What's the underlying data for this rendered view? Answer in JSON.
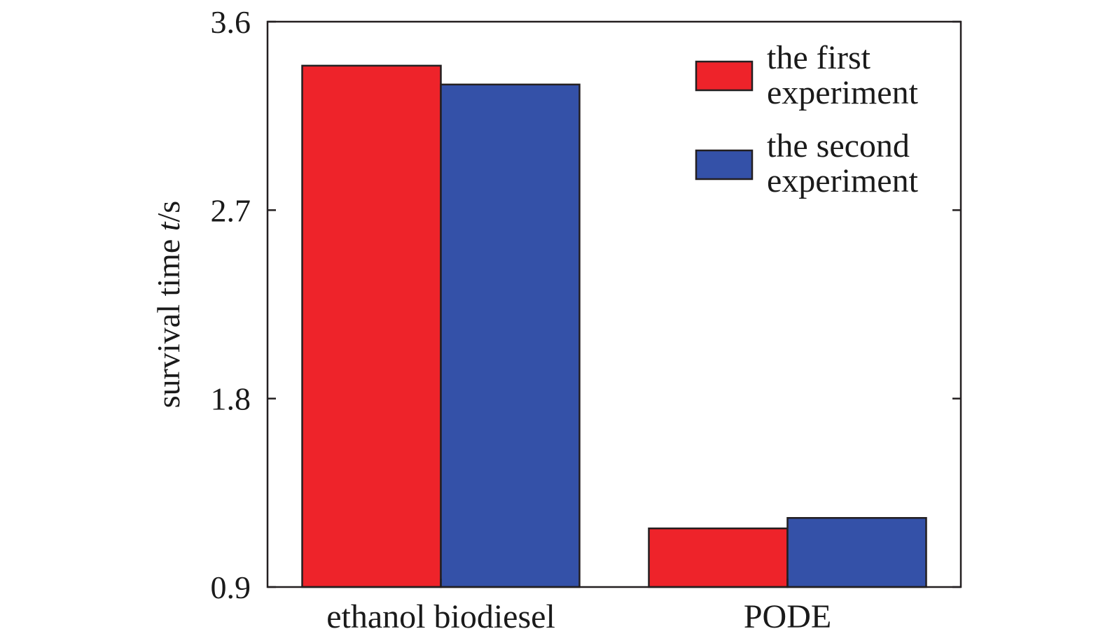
{
  "chart_data": {
    "type": "bar",
    "categories": [
      "ethanol biodiesel",
      "PODE"
    ],
    "series": [
      {
        "name": "the first experiment",
        "values": [
          3.39,
          1.18
        ],
        "color": "#ee232a"
      },
      {
        "name": "the second experiment",
        "values": [
          3.3,
          1.23
        ],
        "color": "#3451a8"
      }
    ],
    "xlabel": "",
    "ylabel": {
      "main": "survival time ",
      "italic": "t",
      "unit": "/s"
    },
    "ylim": [
      0.9,
      3.6
    ],
    "yticks": [
      "0.9",
      "1.8",
      "2.7",
      "3.6"
    ],
    "legend": {
      "placement": "top-right",
      "entries": [
        {
          "line1": "the first",
          "line2": "experiment"
        },
        {
          "line1": "the second",
          "line2": "experiment"
        }
      ]
    },
    "grid": false,
    "axis_color": "#231f20"
  }
}
